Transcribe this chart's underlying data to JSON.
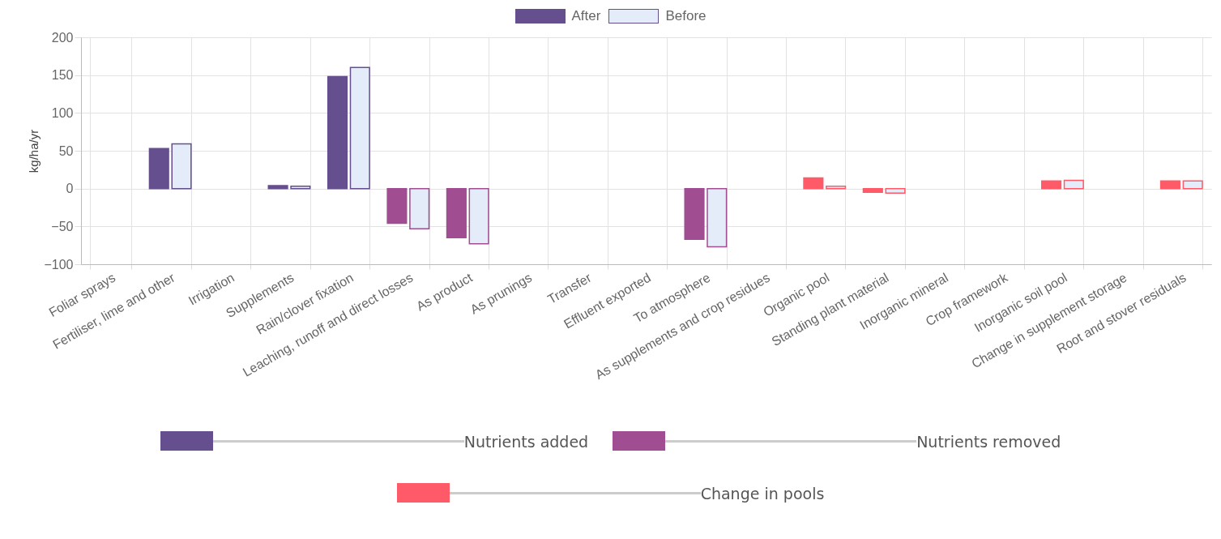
{
  "chart_data": {
    "type": "bar",
    "ylabel": "kg/ha/yr",
    "categories": [
      "Foliar sprays",
      "Fertiliser, lime and other",
      "Irrigation",
      "Supplements",
      "Rain/clover fixation",
      "Leaching, runoff and direct losses",
      "As product",
      "As prunings",
      "Transfer",
      "Effluent exported",
      "To atmosphere",
      "As supplements and crop residues",
      "Organic pool",
      "Standing plant material",
      "Inorganic mineral",
      "Crop framework",
      "Inorganic soil pool",
      "Change in supplement storage",
      "Root and stover residuals"
    ],
    "series": [
      {
        "name": "After",
        "color": "#654f8f",
        "colors": [
          "#654f8f",
          "#654f8f",
          "#654f8f",
          "#654f8f",
          "#654f8f",
          "#a04d92",
          "#a04d92",
          "#a04d92",
          "#a04d92",
          "#a04d92",
          "#a04d92",
          "#a04d92",
          "#ff5a67",
          "#ff5a67",
          "#ff5a67",
          "#ff5a67",
          "#ff5a67",
          "#ff5a67",
          "#ff5a67"
        ],
        "values": [
          0,
          53,
          0,
          4,
          148,
          -46,
          -65,
          0,
          0,
          0,
          -67,
          0,
          14,
          -5,
          0,
          0,
          10,
          0,
          10
        ]
      },
      {
        "name": "Before",
        "color": "#e3ecf8",
        "values": [
          0,
          59,
          0,
          3,
          160,
          -53,
          -73,
          0,
          0,
          0,
          -77,
          0,
          3,
          -6,
          0,
          0,
          11,
          0,
          10
        ]
      }
    ],
    "ylim": [
      -100,
      200
    ],
    "yticks": [
      -100,
      -50,
      0,
      50,
      100,
      150,
      200
    ],
    "grid": true,
    "legend": "top",
    "annotations": [
      "Nutrients added",
      "Nutrients removed",
      "Change in pools"
    ]
  }
}
